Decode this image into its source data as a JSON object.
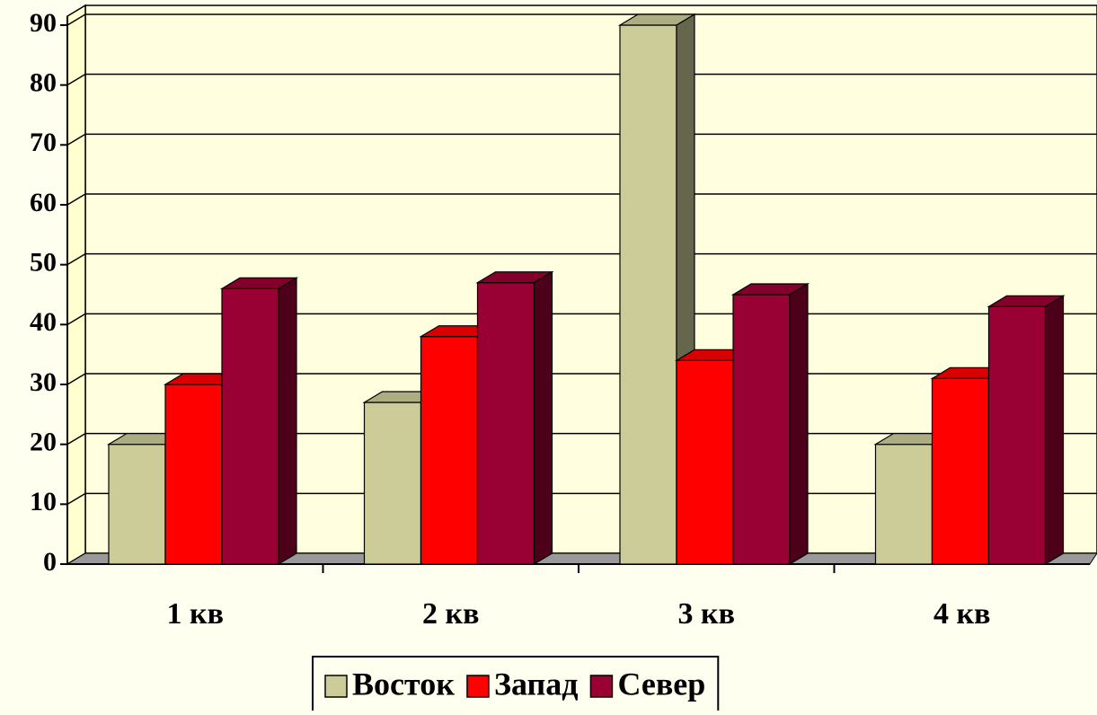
{
  "chart_data": {
    "type": "bar",
    "categories": [
      "1 кв",
      "2 кв",
      "3 кв",
      "4 кв"
    ],
    "series": [
      {
        "name": "Восток",
        "color": "#cccc99",
        "values": [
          20,
          27,
          90,
          20
        ]
      },
      {
        "name": "Запад",
        "color": "#ff0000",
        "values": [
          30,
          38,
          34,
          31
        ]
      },
      {
        "name": "Север",
        "color": "#990033",
        "values": [
          46,
          47,
          45,
          43
        ]
      }
    ],
    "ylim": [
      0,
      90
    ],
    "yticks": [
      0,
      10,
      20,
      30,
      40,
      50,
      60,
      70,
      80,
      90
    ],
    "grid": true,
    "legend": "bottom"
  }
}
